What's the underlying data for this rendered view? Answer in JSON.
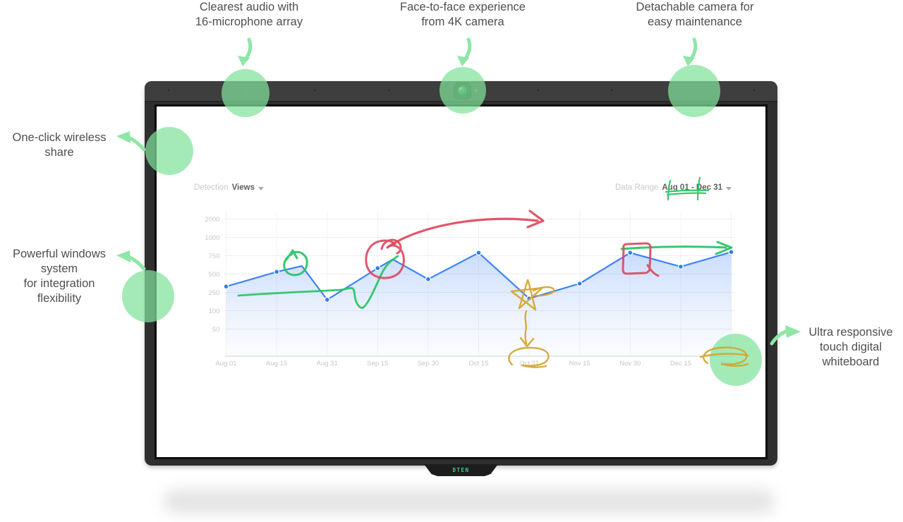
{
  "device": {
    "brand": "DTEN"
  },
  "callouts": {
    "mic": "Clearest audio with\n16-microphone array",
    "camera": "Face-to-face experience\nfrom 4K camera",
    "detachable": "Detachable camera for\neasy maintenance",
    "share": "One-click wireless\nshare",
    "windows": "Powerful windows\nsystem\nfor integration\nflexibility",
    "whiteboard": "Ultra responsive\ntouch digital\nwhiteboard"
  },
  "screen": {
    "detection_label": "Detection",
    "detection_value": "Views",
    "range_label": "Data Range",
    "range_value": "Aug 01 - Dec 31"
  },
  "highlights": {
    "circle_color": "#7fe29b",
    "arrow_color": "#8ee6a7"
  },
  "whiteboard_ink": {
    "colors": {
      "red": "#dc4a5e",
      "green": "#25c463",
      "yellow": "#d2a42c"
    },
    "items": [
      {
        "id": "green-loop-arrow",
        "color_key": "green",
        "note": "small circled arrow over mid-August peak"
      },
      {
        "id": "green-trend-line",
        "color_key": "green",
        "note": "long line with check-mark dip rising to Sep peak"
      },
      {
        "id": "green-horizontal-arrow",
        "color_key": "green",
        "note": "arrow from Nov 30 to Dec 31 point"
      },
      {
        "id": "green-range-underline",
        "color_key": "green",
        "note": "marks under 'Aug 01 -' in date range"
      },
      {
        "id": "red-circle",
        "color_key": "red",
        "note": "circle around Sep 15 point"
      },
      {
        "id": "red-arrow",
        "color_key": "red",
        "note": "curved arrow rising toward Oct 15"
      },
      {
        "id": "red-square",
        "color_key": "red",
        "note": "square around Nov 30 point"
      },
      {
        "id": "yellow-star",
        "color_key": "yellow",
        "note": "star on Oct 31 point"
      },
      {
        "id": "yellow-down-arrow",
        "color_key": "yellow",
        "note": "squiggle arrow from star to axis"
      },
      {
        "id": "yellow-oct31-circle",
        "color_key": "yellow",
        "note": "oval around Oct 31 label"
      },
      {
        "id": "yellow-dec31-circle",
        "color_key": "yellow",
        "note": "oval around Dec 31 label"
      }
    ]
  },
  "chart_data": {
    "type": "area-line",
    "title": "Detection Views",
    "data_range": "Aug 01 - Dec 31",
    "categories": [
      "Aug 01",
      "Aug 15",
      "Aug 31",
      "Sep 15",
      "Sep 30",
      "Oct 15",
      "Oct 31",
      "Nov 15",
      "Nov 30",
      "Dec 15",
      "Dec 31"
    ],
    "values": [
      330,
      530,
      190,
      580,
      430,
      790,
      200,
      370,
      790,
      600,
      800
    ],
    "unlabeled_peaks": [
      {
        "between": [
          "Aug 15",
          "Aug 31"
        ],
        "value": 610
      },
      {
        "between": [
          "Sep 15",
          "Sep 30"
        ],
        "value": 700
      }
    ],
    "y_ticks": [
      2000,
      1000,
      750,
      500,
      250,
      100,
      50
    ],
    "y_scale": "non-linear, ticks evenly spaced",
    "grid": true,
    "legend": false,
    "line_color": "#3e82f7",
    "dot_color": "#2f7df6",
    "series": [
      {
        "name": "Views",
        "points": [
          {
            "x": 0,
            "value": 330,
            "dot": true
          },
          {
            "x": 1,
            "value": 530,
            "dot": true
          },
          {
            "x": 1.5,
            "value": 610,
            "dot": false
          },
          {
            "x": 2,
            "value": 190,
            "dot": true
          },
          {
            "x": 3,
            "value": 580,
            "dot": true
          },
          {
            "x": 3.3,
            "value": 700,
            "dot": false
          },
          {
            "x": 4,
            "value": 430,
            "dot": true
          },
          {
            "x": 5,
            "value": 790,
            "dot": true
          },
          {
            "x": 6,
            "value": 200,
            "dot": true
          },
          {
            "x": 7,
            "value": 370,
            "dot": true
          },
          {
            "x": 8,
            "value": 790,
            "dot": true
          },
          {
            "x": 9,
            "value": 600,
            "dot": true
          },
          {
            "x": 10,
            "value": 800,
            "dot": true
          }
        ]
      }
    ]
  }
}
